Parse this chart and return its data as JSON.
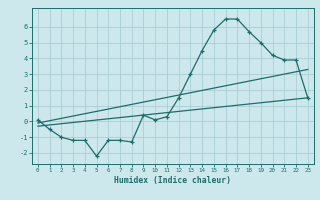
{
  "xlabel": "Humidex (Indice chaleur)",
  "ylabel": "",
  "bg_color": "#cce8ec",
  "grid_color": "#aacdd4",
  "line_color": "#1a6e6a",
  "xlim": [
    -0.5,
    23.5
  ],
  "ylim": [
    -2.7,
    7.2
  ],
  "xticks": [
    0,
    1,
    2,
    3,
    4,
    5,
    6,
    7,
    8,
    9,
    10,
    11,
    12,
    13,
    14,
    15,
    16,
    17,
    18,
    19,
    20,
    21,
    22,
    23
  ],
  "yticks": [
    -2,
    -1,
    0,
    1,
    2,
    3,
    4,
    5,
    6
  ],
  "curve1_x": [
    0,
    1,
    2,
    3,
    4,
    5,
    6,
    7,
    8,
    9,
    10,
    11,
    12,
    13,
    14,
    15,
    16,
    17,
    18,
    19,
    20,
    21,
    22,
    23
  ],
  "curve1_y": [
    0.1,
    -0.5,
    -1.0,
    -1.2,
    -1.2,
    -2.2,
    -1.2,
    -1.2,
    -1.3,
    0.4,
    0.1,
    0.3,
    1.5,
    3.0,
    4.5,
    5.8,
    6.5,
    6.5,
    5.7,
    5.0,
    4.2,
    3.9,
    3.9,
    1.5
  ],
  "line2_x": [
    0,
    23
  ],
  "line2_y": [
    -0.3,
    1.5
  ],
  "line3_x": [
    0,
    23
  ],
  "line3_y": [
    -0.1,
    3.3
  ],
  "figwidth": 3.2,
  "figheight": 2.0,
  "dpi": 100
}
